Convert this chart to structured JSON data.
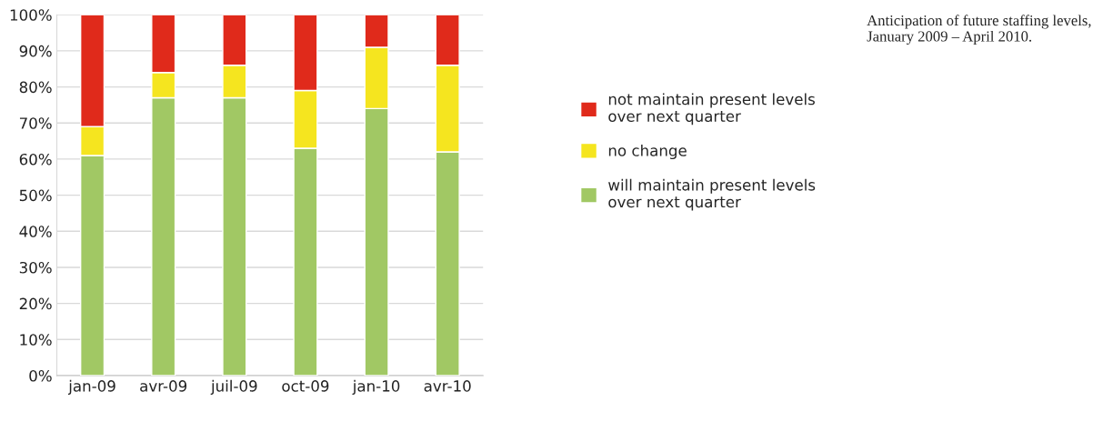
{
  "chart_data": {
    "type": "bar",
    "title": "Anticipation of future staffing levels, January 2009 – April 2010.",
    "categories": [
      "jan-09",
      "avr-09",
      "juil-09",
      "oct-09",
      "jan-10",
      "avr-10"
    ],
    "series": [
      {
        "name": "will maintain present levels\nover next quarter",
        "color": "#a1c864",
        "values": [
          61,
          77,
          77,
          63,
          74,
          62
        ]
      },
      {
        "name": "no change",
        "color": "#f5e51f",
        "values": [
          8,
          7,
          9,
          16,
          17,
          24
        ]
      },
      {
        "name": "not maintain present levels\nover next quarter",
        "color": "#e02a1b",
        "values": [
          31,
          16,
          14,
          21,
          9,
          14
        ]
      }
    ],
    "stacked": true,
    "ylim": [
      0,
      100
    ],
    "yticks": [
      {
        "value": 0,
        "label": "0%"
      },
      {
        "value": 10,
        "label": "10%"
      },
      {
        "value": 20,
        "label": "20%"
      },
      {
        "value": 30,
        "label": "30%"
      },
      {
        "value": 40,
        "label": "40%"
      },
      {
        "value": 50,
        "label": "50%"
      },
      {
        "value": 60,
        "label": "60%"
      },
      {
        "value": 70,
        "label": "70%"
      },
      {
        "value": 80,
        "label": "80%"
      },
      {
        "value": 90,
        "label": "90%"
      },
      {
        "value": 100,
        "label": "100%"
      }
    ],
    "grid": "y",
    "legend": "right"
  }
}
